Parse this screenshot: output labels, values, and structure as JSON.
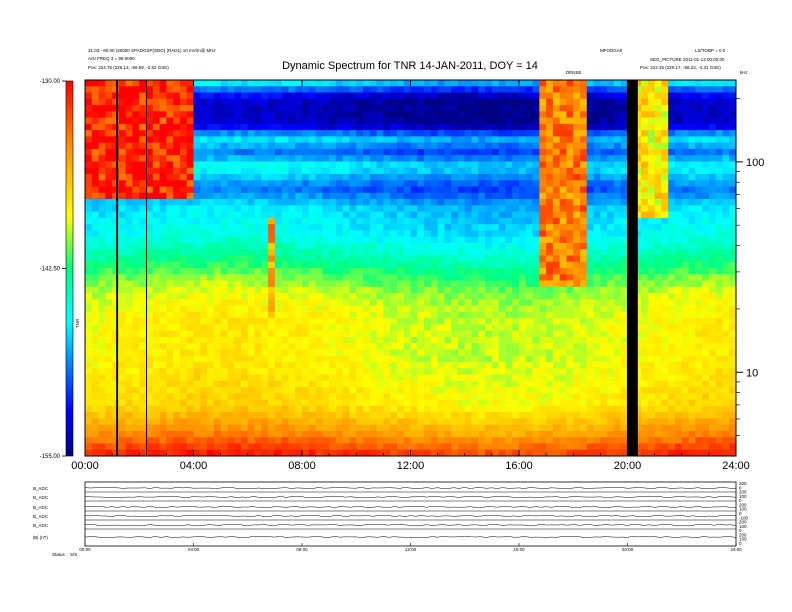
{
  "chart_data": {
    "type": "heatmap",
    "title": "Dynamic Spectrum for TNR 14-JAN-2011, DOY = 14",
    "header_left": [
      "31.03 - 80.00 (20000 SPADGSP(SDO) (RAD1) 10 mV/m@ MHz",
      "AGI FREQ 3  = 99.0000",
      "Pos:    224.76 (226.13, -59.59, -2.52 GSE)"
    ],
    "header_right_top": "MFODGA0",
    "header_right_mid": "LS/TOBP = 0.0",
    "header_right_lines": [
      "SEG_PICTURE  2011-01-12 00:00:00",
      "Pos:    222.25 (220.17, -58.22, -4.31 GSE)"
    ],
    "small_mid_label": "DENSE",
    "small_right_label": "kHz",
    "x_tick_labels": [
      "00:00",
      "04:00",
      "08:00",
      "12:00",
      "16:00",
      "20:00",
      "24:00"
    ],
    "x_range_hours": [
      0,
      24
    ],
    "y_tick_labels": [
      "100",
      "10"
    ],
    "y_tick_values": [
      100,
      10
    ],
    "y_scale": "log",
    "y_range": [
      4,
      245
    ],
    "colorbar_ticks": [
      "-130.00",
      "-142.50",
      "-155.00"
    ],
    "colorbar_values": [
      -130.0,
      -142.5,
      -155.0
    ],
    "colorbar_range": [
      -155.0,
      -130.0
    ],
    "colorbar_label": "TNR",
    "data_gaps_hours": [
      [
        1.15,
        1.22
      ],
      [
        2.25,
        2.27
      ],
      [
        19.98,
        20.38
      ]
    ],
    "bursts": [
      {
        "start": 0.0,
        "end": 4.0,
        "f_low": 65,
        "f_high": 245,
        "level": -131
      },
      {
        "start": 16.8,
        "end": 18.6,
        "f_low": 25,
        "f_high": 245,
        "level": -134
      },
      {
        "start": 6.75,
        "end": 6.95,
        "f_low": 18,
        "f_high": 55,
        "level": -135
      },
      {
        "start": 20.3,
        "end": 21.4,
        "f_low": 55,
        "f_high": 245,
        "level": -138
      }
    ],
    "background_spectrum": [
      {
        "f": 245,
        "level": -146
      },
      {
        "f": 200,
        "level": -154
      },
      {
        "f": 150,
        "level": -154
      },
      {
        "f": 130,
        "level": -147
      },
      {
        "f": 110,
        "level": -150
      },
      {
        "f": 95,
        "level": -146
      },
      {
        "f": 75,
        "level": -150
      },
      {
        "f": 60,
        "level": -147
      },
      {
        "f": 45,
        "level": -146
      },
      {
        "f": 36,
        "level": -144
      },
      {
        "f": 30,
        "level": -142
      },
      {
        "f": 24,
        "level": -140
      },
      {
        "f": 18,
        "level": -139
      },
      {
        "f": 12,
        "level": -139
      },
      {
        "f": 7,
        "level": -138
      },
      {
        "f": 5.2,
        "level": -135
      },
      {
        "f": 4,
        "level": -131
      }
    ],
    "bottom_panel": {
      "row_labels": [
        "B_ADC",
        "B_ADC",
        "B_ADC",
        "B_ADC",
        "B_ADC",
        "|B| (nT)"
      ],
      "right_labels": [
        "200",
        "0",
        "200",
        "100",
        "0",
        "200",
        "100",
        "0",
        "-100",
        "200",
        "100",
        "0",
        "200",
        "100",
        "0"
      ],
      "x_tick_labels": [
        "00:00",
        "04:00",
        "08:00",
        "12:00",
        "16:00",
        "20:00",
        "24:00"
      ],
      "footer_label": "Status",
      "footer_value": "S/S"
    }
  }
}
